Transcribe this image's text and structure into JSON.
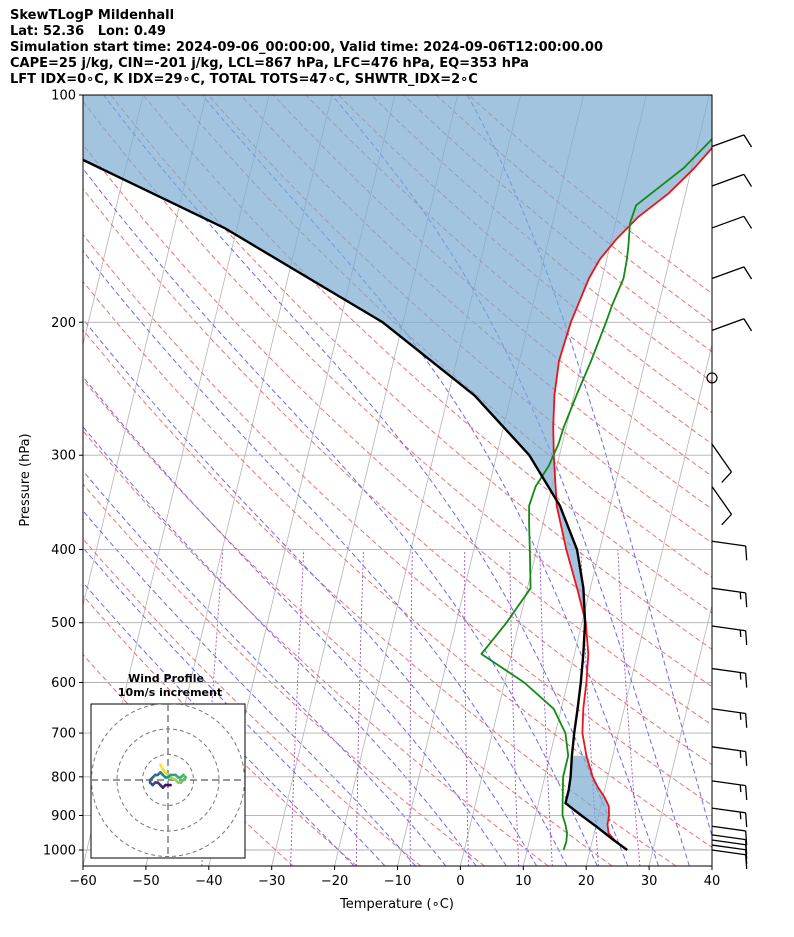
{
  "header": {
    "line1": "SkewTLogP Mildenhall",
    "line2": "Lat: 52.36   Lon: 0.49",
    "line3": "Simulation start time: 2024-09-06_00:00:00, Valid time: 2024-09-06T12:00:00.00",
    "line4": "CAPE=25 j/kg, CIN=-201 j/kg, LCL=867 hPa, LFC=476 hPa, EQ=353 hPa",
    "line5": "LFT IDX=0∘C, K IDX=29∘C, TOTAL TOTS=47∘C, SHWTR_IDX=2∘C"
  },
  "chart_data": {
    "type": "line",
    "xlabel": "Temperature (∘C)",
    "ylabel": "Pressure (hPa)",
    "xlim": [
      -60,
      40
    ],
    "ylim": [
      1050,
      100
    ],
    "y_scale": "log",
    "x_ticks": [
      -60,
      -50,
      -40,
      -30,
      -20,
      -10,
      0,
      10,
      20,
      30,
      40
    ],
    "x_tick_labels": [
      "−60",
      "−50",
      "−40",
      "−30",
      "−20",
      "−10",
      "0",
      "10",
      "20",
      "30",
      "40"
    ],
    "y_ticks": [
      1000,
      900,
      800,
      700,
      600,
      500,
      400,
      300,
      200,
      100
    ],
    "y_tick_labels": [
      "1000",
      "900",
      "800",
      "700",
      "600",
      "500",
      "400",
      "300",
      "200",
      "100"
    ],
    "grid": true,
    "colors": {
      "temperature": "#e8141a",
      "dewpoint": "#138a13",
      "parcel": "#000000",
      "cape_fill": "#7aabd2",
      "dry_adiabat": "#f07070",
      "moist_adiabat": "#6a6af0",
      "mixing_ratio": "#a050c8",
      "isotherm": "#b4b4b4"
    },
    "series": [
      {
        "key": "temperature",
        "points": [
          [
            1000,
            25.9
          ],
          [
            975,
            23.8
          ],
          [
            950,
            22.3
          ],
          [
            925,
            21.8
          ],
          [
            900,
            21.7
          ],
          [
            875,
            21.3
          ],
          [
            850,
            20.2
          ],
          [
            825,
            18.8
          ],
          [
            800,
            17.6
          ],
          [
            750,
            15.8
          ],
          [
            700,
            14.3
          ],
          [
            650,
            13.5
          ],
          [
            600,
            13.0
          ],
          [
            550,
            12.2
          ],
          [
            500,
            10.6
          ],
          [
            450,
            7.9
          ],
          [
            400,
            4.7
          ],
          [
            350,
            1.5
          ],
          [
            320,
            0.1
          ],
          [
            300,
            -0.9
          ],
          [
            275,
            -2.1
          ],
          [
            250,
            -3.1
          ],
          [
            225,
            -3.7
          ],
          [
            200,
            -3.3
          ],
          [
            175,
            -2.1
          ],
          [
            165,
            -1.1
          ],
          [
            155,
            0.8
          ],
          [
            145,
            3.4
          ],
          [
            135,
            7.3
          ],
          [
            125,
            10.4
          ],
          [
            115,
            13.2
          ],
          [
            105,
            15.3
          ],
          [
            100,
            16.2
          ]
        ]
      },
      {
        "key": "dewpoint",
        "points": [
          [
            1000,
            15.8
          ],
          [
            975,
            15.9
          ],
          [
            950,
            15.7
          ],
          [
            925,
            15.1
          ],
          [
            900,
            14.3
          ],
          [
            850,
            13.6
          ],
          [
            800,
            12.9
          ],
          [
            750,
            12.9
          ],
          [
            700,
            11.6
          ],
          [
            650,
            8.8
          ],
          [
            600,
            3.1
          ],
          [
            550,
            -4.8
          ],
          [
            500,
            -2.0
          ],
          [
            450,
            0.5
          ],
          [
            400,
            -1.1
          ],
          [
            370,
            -2.2
          ],
          [
            350,
            -2.9
          ],
          [
            330,
            -2.6
          ],
          [
            310,
            -1.3
          ],
          [
            290,
            -0.6
          ],
          [
            275,
            -0.4
          ],
          [
            250,
            0.4
          ],
          [
            225,
            1.4
          ],
          [
            200,
            2.3
          ],
          [
            190,
            2.6
          ],
          [
            175,
            3.4
          ],
          [
            165,
            3.2
          ],
          [
            158,
            2.9
          ],
          [
            148,
            2.3
          ],
          [
            140,
            2.6
          ],
          [
            125,
            8.7
          ],
          [
            100,
            17.3
          ]
        ]
      },
      {
        "key": "parcel",
        "points": [
          [
            1000,
            25.9
          ],
          [
            967,
            23.1
          ],
          [
            933,
            20.3
          ],
          [
            900,
            17.3
          ],
          [
            867,
            14.3
          ],
          [
            833,
            14.3
          ],
          [
            800,
            14.1
          ],
          [
            750,
            13.5
          ],
          [
            700,
            13.0
          ],
          [
            650,
            12.6
          ],
          [
            600,
            12.1
          ],
          [
            550,
            11.4
          ],
          [
            500,
            10.5
          ],
          [
            450,
            8.9
          ],
          [
            400,
            6.4
          ],
          [
            350,
            2.0
          ],
          [
            300,
            -4.8
          ],
          [
            250,
            -15.8
          ],
          [
            200,
            -33.2
          ],
          [
            150,
            -62.0
          ],
          [
            100,
            -111.0
          ]
        ]
      }
    ],
    "cape_region": {
      "p_bottom": 476,
      "p_top": 100
    },
    "cin_region": {
      "p_bottom": 1000,
      "p_top": 750
    },
    "wind_barbs": [
      {
        "p": 1000,
        "speed": 10,
        "dir": "W"
      },
      {
        "p": 985,
        "speed": 10,
        "dir": "W"
      },
      {
        "p": 970,
        "speed": 10,
        "dir": "W"
      },
      {
        "p": 955,
        "speed": 10,
        "dir": "W"
      },
      {
        "p": 930,
        "speed": 10,
        "dir": "W"
      },
      {
        "p": 880,
        "speed": 15,
        "dir": "W"
      },
      {
        "p": 810,
        "speed": 15,
        "dir": "W"
      },
      {
        "p": 730,
        "speed": 15,
        "dir": "W"
      },
      {
        "p": 650,
        "speed": 15,
        "dir": "W"
      },
      {
        "p": 575,
        "speed": 15,
        "dir": "W"
      },
      {
        "p": 505,
        "speed": 15,
        "dir": "W"
      },
      {
        "p": 450,
        "speed": 15,
        "dir": "W"
      },
      {
        "p": 390,
        "speed": 10,
        "dir": "W"
      },
      {
        "p": 330,
        "speed": 10,
        "dir": "SW"
      },
      {
        "p": 290,
        "speed": 10,
        "dir": "SW"
      },
      {
        "p": 237,
        "speed": 0,
        "dir": "calm"
      },
      {
        "p": 205,
        "speed": 10,
        "dir": "NW"
      },
      {
        "p": 175,
        "speed": 10,
        "dir": "NW"
      },
      {
        "p": 150,
        "speed": 10,
        "dir": "NW"
      },
      {
        "p": 132,
        "speed": 10,
        "dir": "NW"
      },
      {
        "p": 117,
        "speed": 10,
        "dir": "NW"
      }
    ],
    "inset": {
      "title_line1": "Wind Profile",
      "title_line2": "10m/s increment",
      "rings": [
        10,
        20,
        30
      ],
      "hodograph": [
        [
          -3,
          6
        ],
        [
          -2,
          4
        ],
        [
          -1,
          3
        ],
        [
          0,
          2
        ],
        [
          1,
          1
        ],
        [
          3,
          0
        ],
        [
          4,
          -1
        ],
        [
          5,
          -1
        ],
        [
          6,
          0
        ],
        [
          7,
          1
        ],
        [
          6,
          2
        ],
        [
          5,
          1
        ],
        [
          4,
          1
        ],
        [
          3,
          2
        ],
        [
          1,
          2
        ],
        [
          0,
          1
        ],
        [
          -1,
          1
        ],
        [
          -2,
          2
        ],
        [
          -3,
          3
        ],
        [
          -4,
          2
        ],
        [
          -5,
          2
        ],
        [
          -6,
          1
        ],
        [
          -7,
          0
        ],
        [
          -7,
          -1
        ],
        [
          -6,
          -2
        ],
        [
          -5,
          -1
        ],
        [
          -4,
          -1
        ],
        [
          -3,
          -2
        ],
        [
          -2,
          -3
        ],
        [
          -1,
          -2
        ],
        [
          0,
          -2
        ],
        [
          1,
          -2
        ]
      ]
    }
  }
}
